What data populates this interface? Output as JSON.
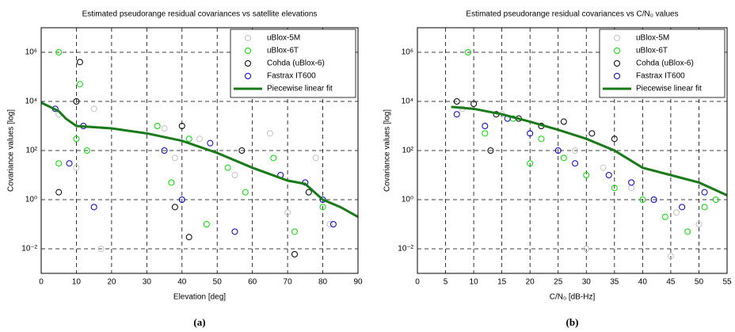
{
  "chart_data": [
    {
      "type": "scatter",
      "title": "Estimated pseudorange residual covariances vs satellite elevations",
      "x_label": "Elevation [deg]",
      "y_label": "Covariance values [log]",
      "caption": "(a)",
      "xlim": [
        0,
        90
      ],
      "xticks": [
        0,
        10,
        20,
        30,
        40,
        50,
        60,
        70,
        80,
        90
      ],
      "ylim": [
        0.001,
        10000000
      ],
      "log_y": true,
      "grid": true,
      "legend": "upper right",
      "yticks": [
        {
          "value": 0.01,
          "label": "10⁻²"
        },
        {
          "value": 1,
          "label": "10⁰"
        },
        {
          "value": 100,
          "label": "10²"
        },
        {
          "value": 10000,
          "label": "10⁴"
        },
        {
          "value": 1000000,
          "label": "10⁶"
        }
      ],
      "series": [
        {
          "name": "uBlox-5M",
          "color": "#c4c4c4",
          "x": [
            5,
            10,
            15,
            35,
            38,
            45,
            55,
            65,
            70,
            78,
            82,
            17
          ],
          "values": [
            3000,
            20,
            5000,
            800,
            50,
            300,
            10,
            500,
            0.3,
            50,
            0.1,
            0.01
          ]
        },
        {
          "name": "uBlox-6T",
          "color": "#00e000",
          "x": [
            5,
            11,
            13,
            33,
            37,
            42,
            47,
            53,
            58,
            66,
            72,
            80,
            5,
            10
          ],
          "values": [
            1000000,
            50000,
            100,
            1000,
            5,
            300,
            0.1,
            20,
            2,
            50,
            0.05,
            0.5,
            30,
            300
          ]
        },
        {
          "name": "Cohda (uBlox-6)",
          "color": "#000000",
          "x": [
            11,
            10,
            5,
            40,
            42,
            57,
            72,
            76,
            38
          ],
          "values": [
            400000,
            10000,
            2,
            1000,
            0.03,
            100,
            0.006,
            2,
            0.5
          ]
        },
        {
          "name": "Fastrax IT600",
          "color": "#0000cc",
          "x": [
            4,
            8,
            12,
            15,
            35,
            40,
            48,
            55,
            68,
            75,
            80,
            83
          ],
          "values": [
            5000,
            30,
            1000,
            0.5,
            100,
            1,
            200,
            0.05,
            10,
            5,
            1,
            0.1
          ]
        },
        {
          "name": "Piecewise linear fit",
          "color": "#1a7a1a",
          "line": true,
          "x": [
            0,
            5,
            7,
            10,
            20,
            30,
            40,
            50,
            60,
            70,
            75,
            80,
            85,
            90
          ],
          "values": [
            9000,
            4000,
            2000,
            1000,
            800,
            500,
            250,
            80,
            20,
            6,
            4.4,
            1,
            0.5,
            0.2
          ]
        }
      ]
    },
    {
      "type": "scatter",
      "title": "Estimated pseudorange residual covariances vs C/N₀ values",
      "x_label": "C/N₀ [dB-Hz]",
      "y_label": "Covariance values [log]",
      "caption": "(b)",
      "xlim": [
        0,
        55
      ],
      "xticks": [
        0,
        5,
        10,
        15,
        20,
        25,
        30,
        35,
        40,
        45,
        50,
        55
      ],
      "ylim": [
        0.001,
        10000000
      ],
      "log_y": true,
      "grid": true,
      "legend": "upper right",
      "yticks": [
        {
          "value": 0.01,
          "label": "10⁻²"
        },
        {
          "value": 1,
          "label": "10⁰"
        },
        {
          "value": 100,
          "label": "10²"
        },
        {
          "value": 10000,
          "label": "10⁴"
        },
        {
          "value": 1000000,
          "label": "10⁶"
        }
      ],
      "series": [
        {
          "name": "uBlox-5M",
          "color": "#c4c4c4",
          "x": [
            8,
            15,
            22,
            28,
            33,
            38,
            42,
            46,
            50,
            30,
            45
          ],
          "values": [
            5000,
            3000,
            1000,
            100,
            20,
            3,
            1,
            0.3,
            0.1,
            0.01,
            0.005
          ]
        },
        {
          "name": "uBlox-6T",
          "color": "#00e000",
          "x": [
            9,
            12,
            17,
            22,
            26,
            30,
            35,
            40,
            44,
            48,
            51,
            53,
            20
          ],
          "values": [
            1000000,
            500,
            2000,
            300,
            50,
            10,
            3,
            1,
            0.2,
            0.05,
            0.5,
            1,
            30
          ]
        },
        {
          "name": "Cohda (uBlox-6)",
          "color": "#000000",
          "x": [
            7,
            10,
            14,
            18,
            22,
            26,
            31,
            35,
            13
          ],
          "values": [
            10000,
            8000,
            3000,
            2000,
            1000,
            1500,
            500,
            300,
            100
          ]
        },
        {
          "name": "Fastrax IT600",
          "color": "#0000cc",
          "x": [
            7,
            12,
            16,
            20,
            25,
            28,
            34,
            38,
            42,
            47,
            51
          ],
          "values": [
            3000,
            1000,
            2000,
            500,
            100,
            30,
            10,
            5,
            1,
            0.5,
            2
          ]
        },
        {
          "name": "Piecewise linear fit",
          "color": "#1a7a1a",
          "line": true,
          "x": [
            6,
            10,
            15,
            20,
            25,
            30,
            35,
            40,
            45,
            50,
            55
          ],
          "values": [
            6000,
            5000,
            3000,
            1500,
            700,
            300,
            100,
            20,
            10,
            5,
            1.5
          ]
        }
      ]
    }
  ]
}
